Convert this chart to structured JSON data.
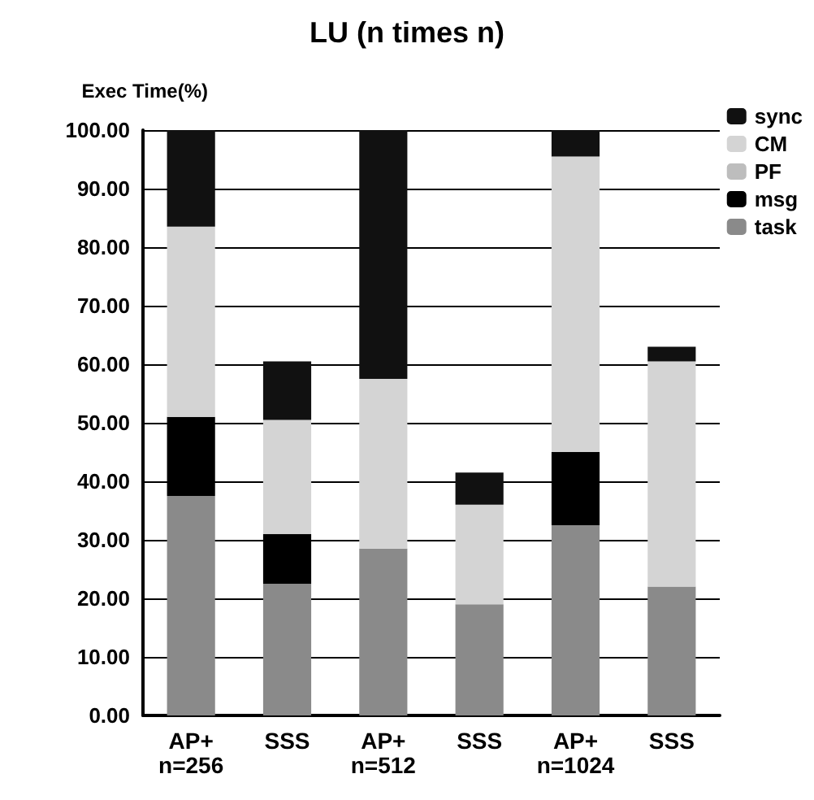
{
  "chart_data": {
    "type": "bar",
    "title": "LU (n times n)",
    "ylabel": "Exec Time(%)",
    "categories": [
      "AP+\nn=256",
      "SSS",
      "AP+\nn=512",
      "SSS",
      "AP+\nn=1024",
      "SSS"
    ],
    "stacked": true,
    "grid": "y",
    "legend": "top right",
    "ylim": [
      0,
      100
    ],
    "yticks": [
      {
        "value": 0,
        "label": "0.00"
      },
      {
        "value": 10,
        "label": "10.00"
      },
      {
        "value": 20,
        "label": "20.00"
      },
      {
        "value": 30,
        "label": "30.00"
      },
      {
        "value": 40,
        "label": "40.00"
      },
      {
        "value": 50,
        "label": "50.00"
      },
      {
        "value": 60,
        "label": "60.00"
      },
      {
        "value": 70,
        "label": "70.00"
      },
      {
        "value": 80,
        "label": "80.00"
      },
      {
        "value": 90,
        "label": "90.00"
      },
      {
        "value": 100,
        "label": "100.00"
      }
    ],
    "series": [
      {
        "name": "task",
        "color": "#8a8a8a",
        "values": [
          37.5,
          22.5,
          28.5,
          19,
          32.5,
          22
        ]
      },
      {
        "name": "msg",
        "color": "#000000",
        "values": [
          13.5,
          8.5,
          0,
          0,
          12.5,
          0
        ]
      },
      {
        "name": "PF",
        "color": "#bdbdbd",
        "values": [
          0,
          0,
          0,
          0,
          0,
          0
        ]
      },
      {
        "name": "CM",
        "color": "#d4d4d4",
        "values": [
          32.5,
          19.5,
          29,
          17,
          50.5,
          38.5
        ]
      },
      {
        "name": "sync",
        "color": "#111111",
        "values": [
          16.5,
          10,
          42.5,
          5.5,
          4.5,
          2.5
        ]
      }
    ]
  }
}
